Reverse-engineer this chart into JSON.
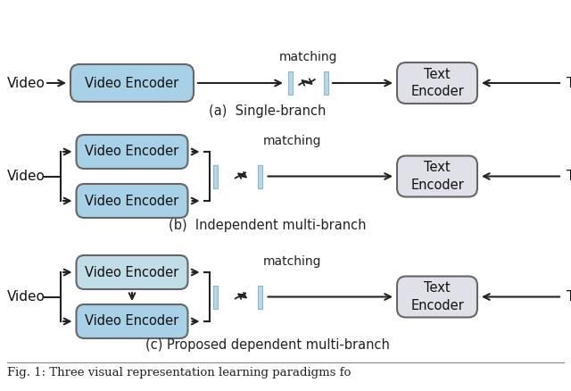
{
  "bg_color": "#ffffff",
  "video_encoder_color": "#a8d0e6",
  "video_encoder_color_light": "#c0dde8",
  "video_encoder_edge": "#666666",
  "text_encoder_color": "#e0e0e8",
  "text_encoder_edge": "#666666",
  "feature_bar_color": "#b8d8e8",
  "feature_bar_edge": "#8ab8cc",
  "arrow_color": "#222222",
  "caption_a": "(a)  Single-branch",
  "caption_b": "(b)  Independent multi-branch",
  "caption_c": "(c) Proposed dependent multi-branch",
  "footer": "Fig. 1: Three visual representation learning paradigms fo",
  "font_size_box": 10.5,
  "font_size_caption": 10.5,
  "font_size_label": 11,
  "font_size_matching": 10,
  "font_size_footer": 9.5
}
